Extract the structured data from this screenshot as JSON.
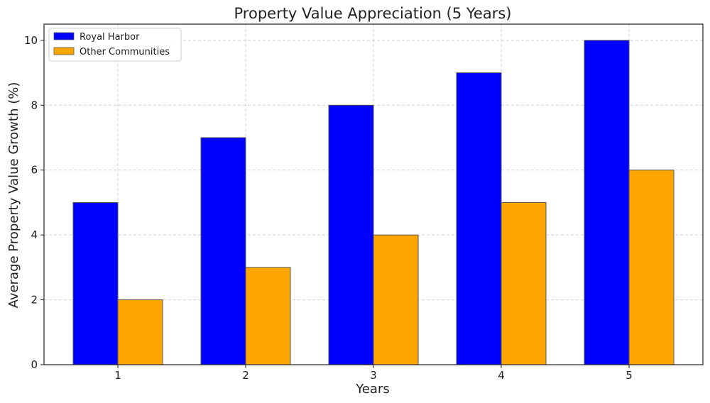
{
  "chart_data": {
    "type": "bar",
    "title": "Property Value Appreciation (5 Years)",
    "xlabel": "Years",
    "ylabel": "Average Property Value Growth (%)",
    "categories": [
      "1",
      "2",
      "3",
      "4",
      "5"
    ],
    "series": [
      {
        "name": "Royal Harbor",
        "values": [
          5,
          7,
          8,
          9,
          10
        ],
        "color": "#0000ff"
      },
      {
        "name": "Other Communities",
        "values": [
          2,
          3,
          4,
          5,
          6
        ],
        "color": "#ffa500"
      }
    ],
    "ylim": [
      0,
      10.5
    ],
    "yticks": [
      0,
      2,
      4,
      6,
      8,
      10
    ],
    "grid": true,
    "legend_position": "top-left"
  }
}
